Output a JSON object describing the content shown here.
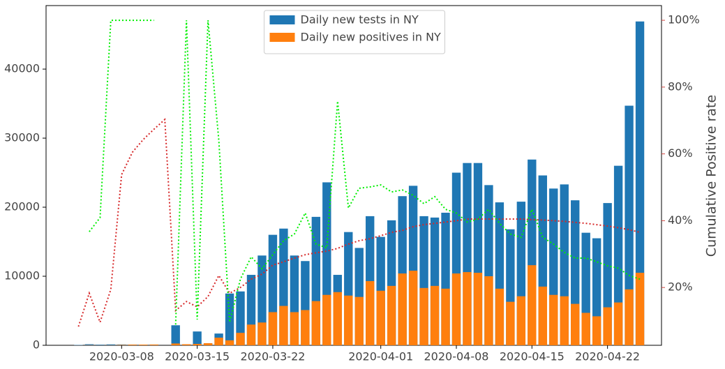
{
  "chart_data": {
    "type": "bar_line",
    "x": [
      "2020-03-04",
      "2020-03-05",
      "2020-03-06",
      "2020-03-07",
      "2020-03-08",
      "2020-03-09",
      "2020-03-10",
      "2020-03-11",
      "2020-03-12",
      "2020-03-13",
      "2020-03-14",
      "2020-03-15",
      "2020-03-16",
      "2020-03-17",
      "2020-03-18",
      "2020-03-19",
      "2020-03-20",
      "2020-03-21",
      "2020-03-22",
      "2020-03-23",
      "2020-03-24",
      "2020-03-25",
      "2020-03-26",
      "2020-03-27",
      "2020-03-28",
      "2020-03-29",
      "2020-03-30",
      "2020-03-31",
      "2020-04-01",
      "2020-04-02",
      "2020-04-03",
      "2020-04-04",
      "2020-04-05",
      "2020-04-06",
      "2020-04-07",
      "2020-04-08",
      "2020-04-09",
      "2020-04-10",
      "2020-04-11",
      "2020-04-12",
      "2020-04-13",
      "2020-04-14",
      "2020-04-15",
      "2020-04-16",
      "2020-04-17",
      "2020-04-18",
      "2020-04-19",
      "2020-04-20",
      "2020-04-21",
      "2020-04-22",
      "2020-04-23",
      "2020-04-24",
      "2020-04-25"
    ],
    "xlim": [
      "2020-03-01",
      "2020-04-27"
    ],
    "xticks": [
      "2020-03-08",
      "2020-03-15",
      "2020-03-22",
      "2020-04-01",
      "2020-04-08",
      "2020-04-15",
      "2020-04-22"
    ],
    "ylim": [
      0,
      49200
    ],
    "yticks": [
      0,
      10000,
      20000,
      30000,
      40000
    ],
    "y2label": "Cumulative Positive rate",
    "y2lim": [
      2.7,
      104.4
    ],
    "y2ticks": [
      {
        "value": 20,
        "label": "20%"
      },
      {
        "value": 40,
        "label": "40%"
      },
      {
        "value": 60,
        "label": "60%"
      },
      {
        "value": 80,
        "label": "80%"
      },
      {
        "value": 100,
        "label": "100%"
      }
    ],
    "legend": "upper center",
    "y2color": "#d0443e",
    "series": [
      {
        "name": "Daily new tests in NY",
        "type": "bar",
        "color": "#1f77b4",
        "values": [
          50,
          150,
          90,
          130,
          120,
          110,
          100,
          110,
          0,
          2900,
          150,
          2000,
          300,
          1700,
          7500,
          7800,
          10200,
          13000,
          16000,
          16900,
          13000,
          12200,
          18600,
          23600,
          10200,
          16400,
          14100,
          18700,
          15700,
          18100,
          21600,
          23100,
          18700,
          18500,
          19200,
          25000,
          26400,
          26400,
          23200,
          20700,
          16800,
          20800,
          26900,
          24600,
          22700,
          23300,
          21000,
          16300,
          15500,
          20600,
          26000,
          34700,
          46900
        ]
      },
      {
        "name": "Daily new positives in NY",
        "type": "bar",
        "color": "#ff7f0e",
        "values": [
          4,
          27,
          10,
          20,
          60,
          100,
          100,
          110,
          0,
          260,
          150,
          200,
          300,
          1100,
          720,
          1800,
          3000,
          3300,
          4800,
          5700,
          4800,
          5100,
          6400,
          7300,
          7700,
          7200,
          7000,
          9300,
          7900,
          8600,
          10400,
          10800,
          8300,
          8600,
          8200,
          10400,
          10600,
          10500,
          10000,
          8200,
          6300,
          7100,
          11600,
          8500,
          7300,
          7100,
          6000,
          4700,
          4200,
          5500,
          6200,
          8100,
          10500
        ]
      },
      {
        "type": "line",
        "axis": "y2",
        "color": "#d62728",
        "values": [
          8.3,
          18.3,
          9.6,
          19.4,
          53.8,
          60.5,
          64.3,
          67.4,
          70.3,
          13.1,
          15.8,
          14.2,
          17.3,
          23.6,
          18.3,
          20,
          22.5,
          24,
          26.7,
          27.7,
          28.8,
          29.8,
          30.4,
          30.9,
          31.7,
          33,
          34,
          34.6,
          35.5,
          36.5,
          37.1,
          38.2,
          38.8,
          39.2,
          39.6,
          40,
          40.5,
          40.5,
          40.5,
          40.5,
          40.5,
          40.5,
          40.3,
          40.2,
          40,
          39.8,
          39.5,
          39.2,
          38.8,
          38.4,
          37.9,
          37.3,
          36.5
        ]
      },
      {
        "type": "line",
        "axis": "y2",
        "color": "#00ee00",
        "values": [
          null,
          36.7,
          40.9,
          100,
          100,
          100,
          100,
          100,
          null,
          8.9,
          100,
          10.4,
          100,
          64,
          9.6,
          22.5,
          29.2,
          25.6,
          29.8,
          34,
          36,
          42.3,
          33,
          31.9,
          75.8,
          43.8,
          49.7,
          50.1,
          50.7,
          48.6,
          49.2,
          47.6,
          45.1,
          47.2,
          43.4,
          42.3,
          39.6,
          40.5,
          43.4,
          39.2,
          36,
          35,
          43.4,
          35,
          33,
          30.5,
          28.8,
          28.8,
          27.7,
          26.5,
          25.8,
          23.6,
          22.5
        ]
      }
    ]
  }
}
